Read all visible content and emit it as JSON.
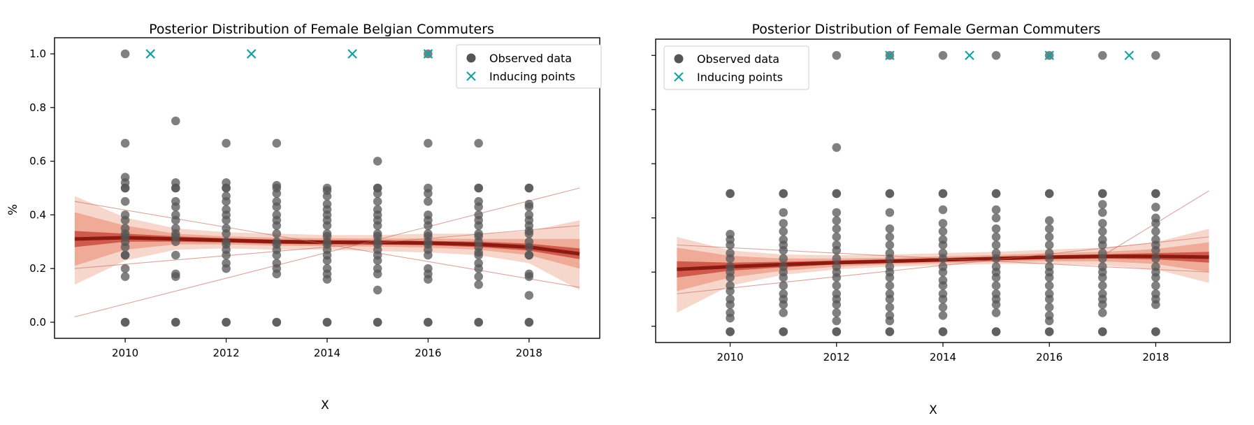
{
  "colors": {
    "observed": "#555555",
    "observed_dense": "#000000",
    "inducing": "#17a2a2",
    "band_outer": "#f6cfc2",
    "band_mid": "#ec9c86",
    "band_inner": "#c8463a",
    "mean": "#8b1a10",
    "sample": "#c46a5e"
  },
  "chart_data": [
    {
      "type": "scatter",
      "title": "Posterior Distribution of Female Belgian Commuters",
      "xlabel": "X",
      "ylabel": "%",
      "xlim": [
        2008.6,
        2019.4
      ],
      "ylim": [
        -0.06,
        1.06
      ],
      "xticks": [
        2010,
        2012,
        2014,
        2016,
        2018
      ],
      "xtick_labels": [
        "2010",
        "2012",
        "2014",
        "2016",
        "2018"
      ],
      "yticks": [
        0.0,
        0.2,
        0.4,
        0.6,
        0.8,
        1.0
      ],
      "ytick_labels": [
        "0.0",
        "0.2",
        "0.4",
        "0.6",
        "0.8",
        "1.0"
      ],
      "legend": {
        "placement": "top-right",
        "entries": [
          "Observed data",
          "Inducing points"
        ]
      },
      "grid": false,
      "series": [
        {
          "name": "Observed data",
          "marker": "circle",
          "points": [
            {
              "x": 2010,
              "values": [
                1.0,
                0.667,
                0.54,
                0.52,
                0.5,
                0.5,
                0.45,
                0.4,
                0.38,
                0.35,
                0.33,
                0.32,
                0.3,
                0.28,
                0.25,
                0.25,
                0.2,
                0.17,
                0.0,
                0.0
              ]
            },
            {
              "x": 2011,
              "values": [
                0.75,
                0.52,
                0.5,
                0.5,
                0.45,
                0.43,
                0.4,
                0.38,
                0.35,
                0.33,
                0.32,
                0.3,
                0.25,
                0.18,
                0.17,
                0.0,
                0.0
              ]
            },
            {
              "x": 2012,
              "values": [
                0.667,
                0.52,
                0.5,
                0.5,
                0.47,
                0.45,
                0.42,
                0.4,
                0.38,
                0.35,
                0.33,
                0.3,
                0.29,
                0.27,
                0.25,
                0.22,
                0.2,
                0.0,
                0.0
              ]
            },
            {
              "x": 2013,
              "values": [
                0.667,
                0.51,
                0.5,
                0.48,
                0.45,
                0.43,
                0.4,
                0.38,
                0.36,
                0.33,
                0.3,
                0.29,
                0.27,
                0.25,
                0.22,
                0.2,
                0.18,
                0.0,
                0.0
              ]
            },
            {
              "x": 2014,
              "values": [
                0.5,
                0.49,
                0.47,
                0.44,
                0.42,
                0.4,
                0.38,
                0.36,
                0.33,
                0.32,
                0.3,
                0.29,
                0.27,
                0.25,
                0.23,
                0.2,
                0.18,
                0.16,
                0.0,
                0.0
              ]
            },
            {
              "x": 2015,
              "values": [
                0.6,
                0.5,
                0.5,
                0.48,
                0.45,
                0.42,
                0.4,
                0.38,
                0.36,
                0.33,
                0.32,
                0.3,
                0.29,
                0.27,
                0.25,
                0.23,
                0.2,
                0.18,
                0.12,
                0.0,
                0.0
              ]
            },
            {
              "x": 2016,
              "values": [
                1.0,
                0.667,
                0.5,
                0.48,
                0.45,
                0.4,
                0.38,
                0.36,
                0.33,
                0.32,
                0.3,
                0.29,
                0.27,
                0.25,
                0.2,
                0.18,
                0.16,
                0.0,
                0.0
              ]
            },
            {
              "x": 2017,
              "values": [
                0.667,
                0.5,
                0.5,
                0.45,
                0.43,
                0.4,
                0.38,
                0.36,
                0.33,
                0.32,
                0.3,
                0.28,
                0.26,
                0.25,
                0.22,
                0.2,
                0.17,
                0.14,
                0.0,
                0.0
              ]
            },
            {
              "x": 2018,
              "values": [
                0.5,
                0.5,
                0.44,
                0.43,
                0.4,
                0.38,
                0.36,
                0.34,
                0.33,
                0.3,
                0.28,
                0.25,
                0.25,
                0.18,
                0.17,
                0.1,
                0.0,
                0.0
              ]
            }
          ]
        },
        {
          "name": "Inducing points",
          "marker": "x",
          "x": [
            2010.5,
            2012.5,
            2014.5,
            2016.0
          ],
          "y": [
            1.0,
            1.0,
            1.0,
            1.0
          ]
        }
      ],
      "posterior": {
        "x": [
          2009,
          2010,
          2011,
          2012,
          2013,
          2014,
          2015,
          2016,
          2017,
          2018,
          2019
        ],
        "mean": [
          0.31,
          0.315,
          0.31,
          0.305,
          0.3,
          0.298,
          0.297,
          0.295,
          0.29,
          0.28,
          0.255
        ],
        "band_outer_low": [
          0.14,
          0.23,
          0.27,
          0.275,
          0.27,
          0.27,
          0.265,
          0.26,
          0.25,
          0.22,
          0.12
        ],
        "band_outer_high": [
          0.47,
          0.39,
          0.35,
          0.335,
          0.33,
          0.325,
          0.325,
          0.33,
          0.33,
          0.34,
          0.38
        ],
        "band_mid_low": [
          0.21,
          0.27,
          0.29,
          0.29,
          0.285,
          0.283,
          0.282,
          0.278,
          0.27,
          0.25,
          0.2
        ],
        "band_mid_high": [
          0.41,
          0.36,
          0.33,
          0.32,
          0.315,
          0.313,
          0.312,
          0.312,
          0.31,
          0.31,
          0.31
        ],
        "band_inner_low": [
          0.28,
          0.3,
          0.3,
          0.297,
          0.292,
          0.29,
          0.289,
          0.287,
          0.28,
          0.267,
          0.235
        ],
        "band_inner_high": [
          0.34,
          0.33,
          0.32,
          0.313,
          0.308,
          0.306,
          0.305,
          0.303,
          0.3,
          0.293,
          0.275
        ],
        "samples": [
          {
            "x": [
              2009,
              2019
            ],
            "y": [
              0.02,
              0.5
            ]
          },
          {
            "x": [
              2009,
              2019
            ],
            "y": [
              0.45,
              0.13
            ]
          },
          {
            "x": [
              2009,
              2019
            ],
            "y": [
              0.2,
              0.36
            ]
          }
        ]
      }
    },
    {
      "type": "scatter",
      "title": "Posterior Distribution of Female German Commuters",
      "xlabel": "X",
      "ylabel": "",
      "xlim": [
        2008.6,
        2019.4
      ],
      "ylim": [
        -0.06,
        1.06
      ],
      "xticks": [
        2010,
        2012,
        2014,
        2016,
        2018
      ],
      "xtick_labels": [
        "2010",
        "2012",
        "2014",
        "2016",
        "2018"
      ],
      "yticks": [
        0.0,
        0.2,
        0.4,
        0.6,
        0.8,
        1.0
      ],
      "ytick_labels": [
        "",
        "",
        "",
        "",
        "",
        ""
      ],
      "legend": {
        "placement": "top-left",
        "entries": [
          "Observed data",
          "Inducing points"
        ]
      },
      "grid": false,
      "series": [
        {
          "name": "Observed data",
          "marker": "circle",
          "points": [
            {
              "x": 2010,
              "values": [
                0.49,
                0.49,
                0.34,
                0.32,
                0.3,
                0.27,
                0.25,
                0.22,
                0.2,
                0.18,
                0.15,
                0.13,
                0.1,
                0.08,
                0.05,
                0.03,
                -0.02,
                -0.02
              ]
            },
            {
              "x": 2011,
              "values": [
                0.49,
                0.49,
                0.42,
                0.38,
                0.35,
                0.32,
                0.3,
                0.28,
                0.25,
                0.22,
                0.2,
                0.18,
                0.15,
                0.12,
                0.1,
                0.08,
                0.05,
                -0.02,
                -0.02
              ]
            },
            {
              "x": 2012,
              "values": [
                1.0,
                0.66,
                0.49,
                0.49,
                0.42,
                0.39,
                0.36,
                0.33,
                0.3,
                0.28,
                0.25,
                0.22,
                0.2,
                0.18,
                0.15,
                0.12,
                0.1,
                0.08,
                0.05,
                0.02,
                -0.02,
                -0.02
              ]
            },
            {
              "x": 2013,
              "values": [
                1.0,
                0.49,
                0.49,
                0.42,
                0.36,
                0.33,
                0.3,
                0.27,
                0.25,
                0.22,
                0.2,
                0.18,
                0.15,
                0.12,
                0.1,
                0.07,
                0.04,
                0.02,
                -0.02,
                -0.02
              ]
            },
            {
              "x": 2014,
              "values": [
                1.0,
                0.49,
                0.49,
                0.43,
                0.38,
                0.35,
                0.32,
                0.3,
                0.27,
                0.25,
                0.22,
                0.2,
                0.17,
                0.15,
                0.12,
                0.1,
                0.07,
                0.04,
                -0.02,
                -0.02
              ]
            },
            {
              "x": 2015,
              "values": [
                1.0,
                0.49,
                0.49,
                0.43,
                0.4,
                0.36,
                0.33,
                0.3,
                0.27,
                0.25,
                0.22,
                0.2,
                0.18,
                0.15,
                0.12,
                0.1,
                0.08,
                0.05,
                -0.02,
                -0.02
              ]
            },
            {
              "x": 2016,
              "values": [
                1.0,
                0.49,
                0.49,
                0.39,
                0.36,
                0.33,
                0.3,
                0.27,
                0.25,
                0.22,
                0.2,
                0.18,
                0.15,
                0.12,
                0.1,
                0.07,
                0.04,
                0.02,
                -0.02,
                -0.02
              ]
            },
            {
              "x": 2017,
              "values": [
                1.0,
                0.49,
                0.49,
                0.45,
                0.42,
                0.38,
                0.35,
                0.32,
                0.3,
                0.27,
                0.25,
                0.22,
                0.2,
                0.18,
                0.15,
                0.12,
                0.1,
                0.08,
                0.05,
                -0.02,
                -0.02
              ]
            },
            {
              "x": 2018,
              "values": [
                1.0,
                0.49,
                0.49,
                0.44,
                0.4,
                0.38,
                0.35,
                0.32,
                0.3,
                0.28,
                0.25,
                0.22,
                0.2,
                0.18,
                0.15,
                0.12,
                0.1,
                0.08,
                -0.02,
                -0.02
              ]
            }
          ]
        },
        {
          "name": "Inducing points",
          "marker": "x",
          "x": [
            2013.0,
            2014.5,
            2016.0,
            2017.5
          ],
          "y": [
            1.0,
            1.0,
            1.0,
            1.0
          ]
        }
      ],
      "posterior": {
        "x": [
          2009,
          2010,
          2011,
          2012,
          2013,
          2014,
          2015,
          2016,
          2017,
          2018,
          2019
        ],
        "mean": [
          0.21,
          0.22,
          0.228,
          0.235,
          0.24,
          0.245,
          0.25,
          0.255,
          0.258,
          0.258,
          0.255
        ],
        "band_outer_low": [
          0.05,
          0.15,
          0.19,
          0.21,
          0.22,
          0.225,
          0.23,
          0.23,
          0.225,
          0.21,
          0.16
        ],
        "band_outer_high": [
          0.33,
          0.28,
          0.265,
          0.262,
          0.265,
          0.27,
          0.275,
          0.283,
          0.29,
          0.31,
          0.36
        ],
        "band_mid_low": [
          0.13,
          0.18,
          0.205,
          0.22,
          0.228,
          0.233,
          0.238,
          0.24,
          0.24,
          0.23,
          0.2
        ],
        "band_mid_high": [
          0.29,
          0.26,
          0.25,
          0.25,
          0.253,
          0.258,
          0.263,
          0.27,
          0.275,
          0.285,
          0.31
        ],
        "band_inner_low": [
          0.18,
          0.205,
          0.218,
          0.228,
          0.234,
          0.239,
          0.244,
          0.248,
          0.25,
          0.247,
          0.235
        ],
        "band_inner_high": [
          0.24,
          0.235,
          0.238,
          0.243,
          0.247,
          0.252,
          0.257,
          0.262,
          0.266,
          0.27,
          0.275
        ],
        "samples": [
          {
            "x": [
              2017,
              2019
            ],
            "y": [
              0.26,
              0.5
            ]
          },
          {
            "x": [
              2009,
              2019
            ],
            "y": [
              0.3,
              0.2
            ]
          },
          {
            "x": [
              2009,
              2019
            ],
            "y": [
              0.12,
              0.33
            ]
          }
        ]
      }
    }
  ]
}
